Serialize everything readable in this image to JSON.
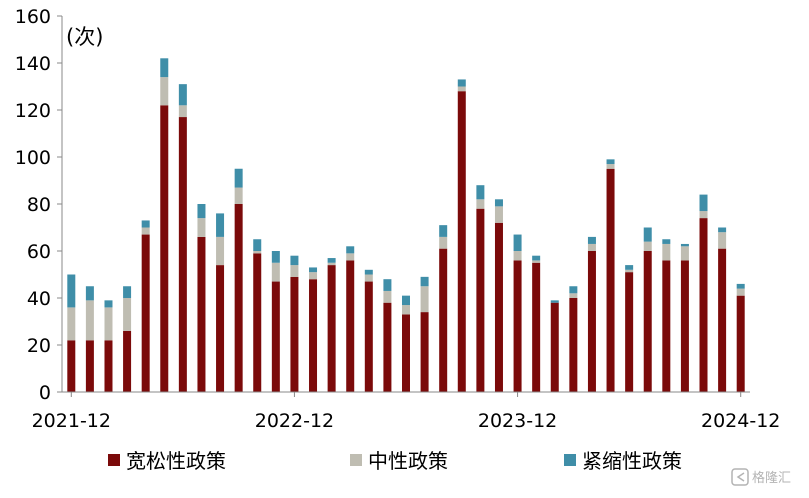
{
  "chart_data": {
    "type": "bar",
    "stacked": true,
    "unit_label": "(次)",
    "categories": [
      "2021-12",
      "2022-01",
      "2022-02",
      "2022-03",
      "2022-04",
      "2022-05",
      "2022-06",
      "2022-07",
      "2022-08",
      "2022-09",
      "2022-10",
      "2022-11",
      "2022-12",
      "2023-01",
      "2023-02",
      "2023-03",
      "2023-04",
      "2023-05",
      "2023-06",
      "2023-07",
      "2023-08",
      "2023-09",
      "2023-10",
      "2023-11",
      "2023-12",
      "2024-01",
      "2024-02",
      "2024-03",
      "2024-04",
      "2024-05",
      "2024-06",
      "2024-07",
      "2024-08",
      "2024-09",
      "2024-10",
      "2024-11",
      "2024-12"
    ],
    "x_tick_labels": [
      "2021-12",
      "2022-12",
      "2023-12",
      "2024-12"
    ],
    "x_tick_indices": [
      0,
      12,
      24,
      36
    ],
    "ylim": [
      0,
      160
    ],
    "yticks": [
      0,
      20,
      40,
      60,
      80,
      100,
      120,
      140,
      160
    ],
    "grid": false,
    "legend_position": "bottom",
    "series": [
      {
        "name": "宽松性政策",
        "color": "#7b0a0a",
        "values": [
          22,
          22,
          22,
          26,
          67,
          122,
          117,
          66,
          54,
          80,
          59,
          47,
          49,
          48,
          54,
          56,
          47,
          38,
          33,
          34,
          61,
          128,
          78,
          72,
          56,
          55,
          38,
          40,
          60,
          95,
          51,
          60,
          56,
          56,
          74,
          61,
          41
        ]
      },
      {
        "name": "中性政策",
        "color": "#bfbdb2",
        "values": [
          14,
          17,
          14,
          14,
          3,
          12,
          5,
          8,
          12,
          7,
          1,
          8,
          5,
          3,
          1,
          3,
          3,
          5,
          4,
          11,
          5,
          2,
          4,
          7,
          4,
          1,
          0,
          2,
          3,
          2,
          1,
          4,
          7,
          6,
          3,
          7,
          3
        ]
      },
      {
        "name": "紧缩性政策",
        "color": "#3f8ea8",
        "values": [
          14,
          6,
          3,
          5,
          3,
          8,
          9,
          6,
          10,
          8,
          5,
          5,
          4,
          2,
          2,
          3,
          2,
          5,
          4,
          4,
          5,
          3,
          6,
          3,
          7,
          2,
          1,
          3,
          3,
          2,
          2,
          6,
          2,
          1,
          7,
          2,
          2
        ]
      }
    ]
  },
  "watermark": {
    "text": "格隆汇",
    "icon": "gelonghui-logo-icon"
  }
}
